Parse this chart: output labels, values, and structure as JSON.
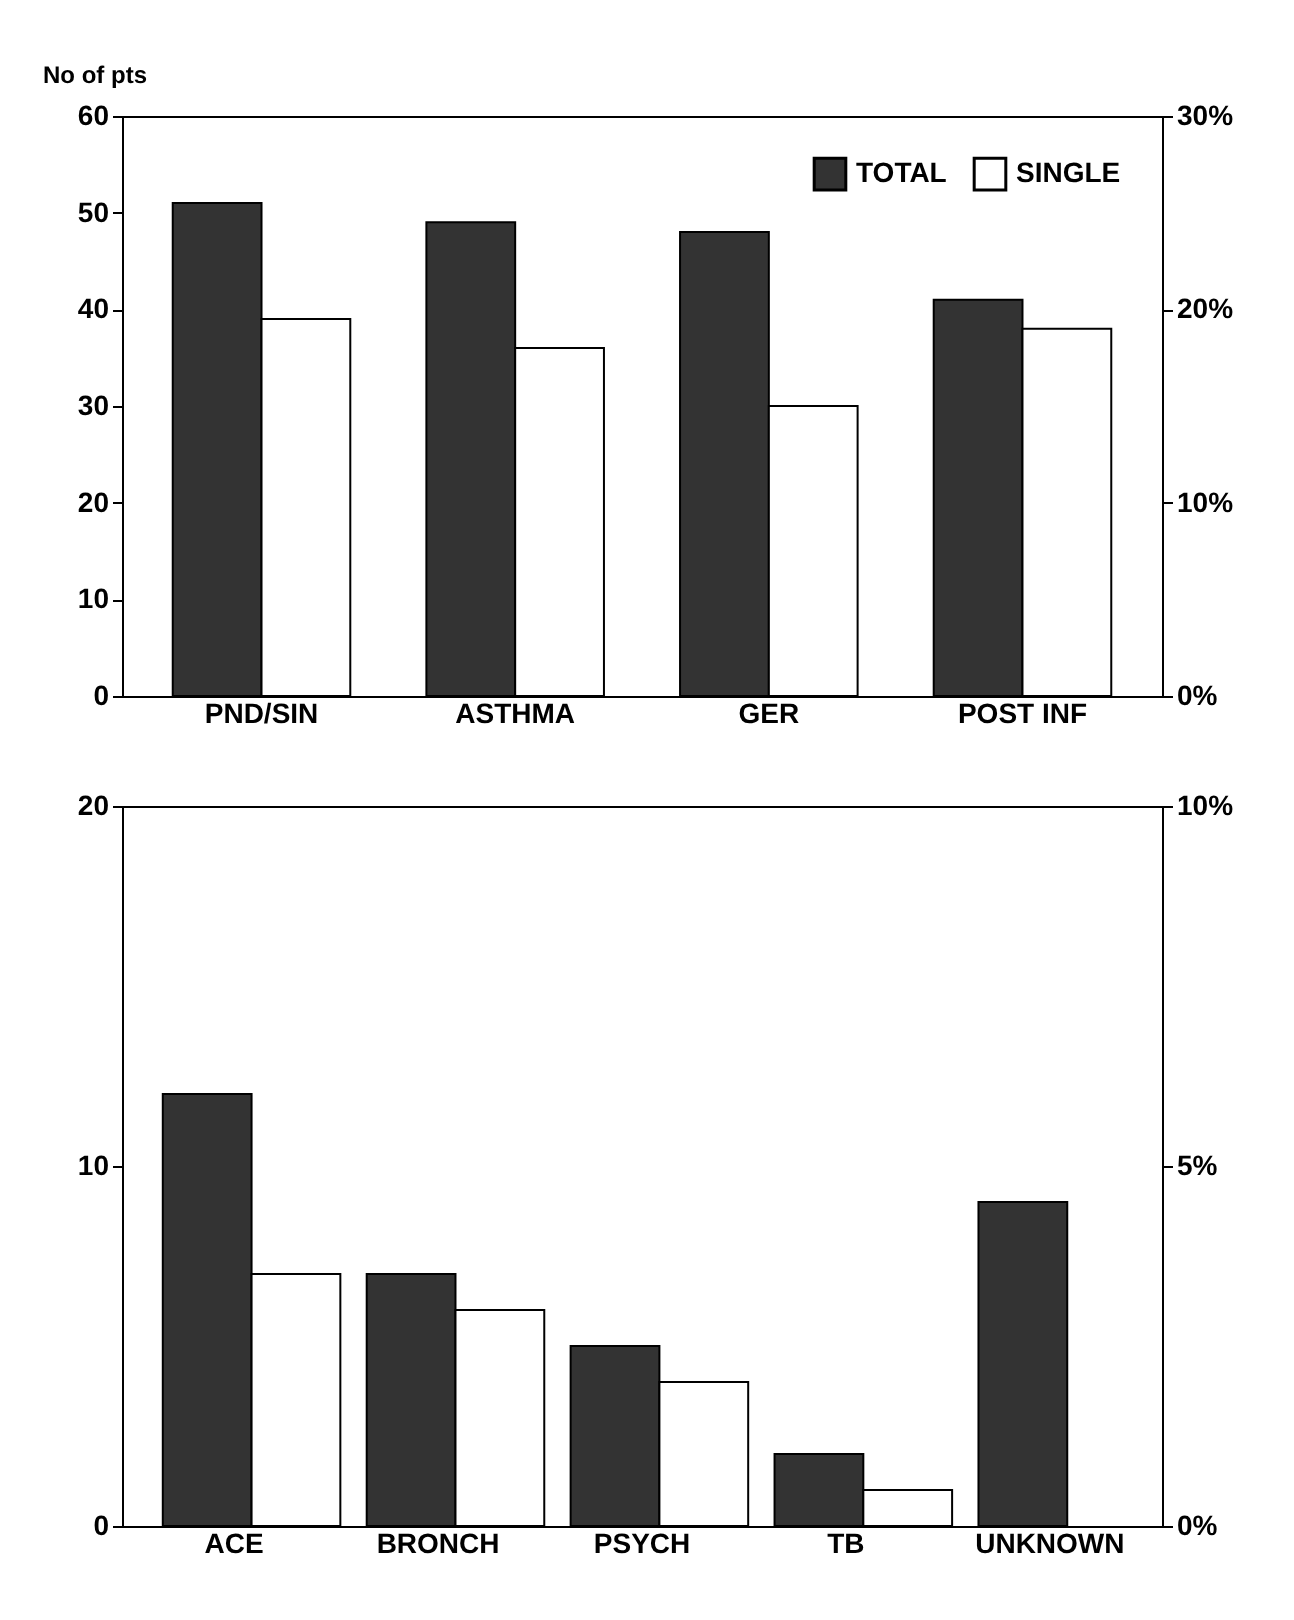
{
  "chart_data": [
    {
      "type": "bar",
      "ylabel": "No of pts",
      "categories": [
        "PND/SIN",
        "ASTHMA",
        "GER",
        "POST INF"
      ],
      "series": [
        {
          "name": "TOTAL",
          "color": "#333333",
          "values": [
            51,
            49,
            48,
            41
          ]
        },
        {
          "name": "SINGLE",
          "color": "#ffffff",
          "values": [
            39,
            36,
            30,
            38
          ]
        }
      ],
      "ylim": [
        0,
        60
      ],
      "yticks": [
        0,
        10,
        20,
        30,
        40,
        50,
        60
      ],
      "y2lim": [
        0,
        30
      ],
      "y2ticks": [
        {
          "value": 0,
          "label": "0%"
        },
        {
          "value": 10,
          "label": "10%"
        },
        {
          "value": 20,
          "label": "20%"
        },
        {
          "value": 30,
          "label": "30%"
        }
      ],
      "grid": false,
      "legend": "top right"
    },
    {
      "type": "bar",
      "categories": [
        "ACE",
        "BRONCH",
        "PSYCH",
        "TB",
        "UNKNOWN"
      ],
      "series": [
        {
          "color": "#333333",
          "values": [
            12,
            7,
            5,
            2,
            9
          ]
        },
        {
          "color": "#ffffff",
          "values": [
            7,
            6,
            4,
            1,
            null
          ]
        }
      ],
      "ylim": [
        0,
        20
      ],
      "yticks": [
        0,
        10,
        20
      ],
      "y2lim": [
        0,
        10
      ],
      "y2ticks": [
        {
          "value": 0,
          "label": "0%"
        },
        {
          "value": 5,
          "label": "5%"
        },
        {
          "value": 10,
          "label": "10%"
        }
      ],
      "grid": false,
      "legend": false
    }
  ]
}
